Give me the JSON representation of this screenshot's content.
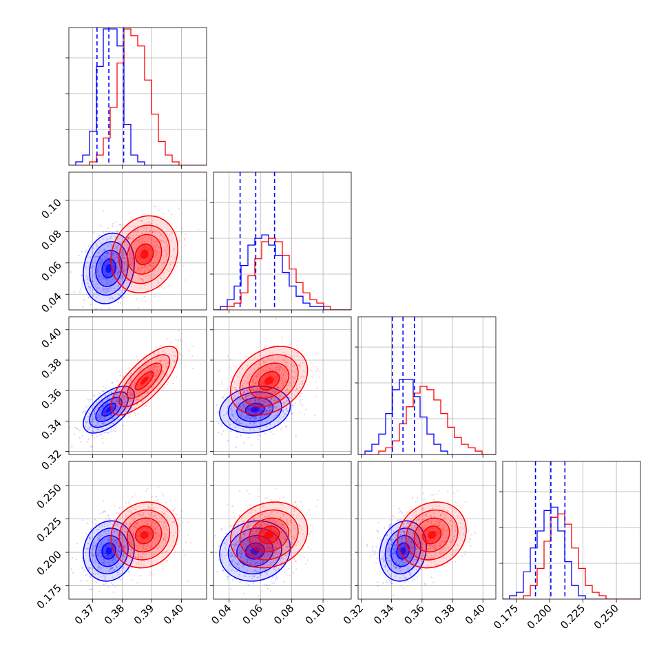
{
  "chart_data": {
    "type": "corner",
    "grid": true,
    "legend": "none",
    "colors": {
      "series_a": "#0000ff",
      "series_b": "#ff0000"
    },
    "series": [
      {
        "color": "#0000ff",
        "mean": [
          0.3755,
          0.0565,
          0.3475,
          0.201
        ],
        "sd": [
          0.0042,
          0.011,
          0.0075,
          0.011
        ],
        "corr": [
          [
            1,
            0.15,
            0.6,
            0.1
          ],
          [
            0.15,
            1,
            0.15,
            0.1
          ],
          [
            0.6,
            0.15,
            1,
            0.15
          ],
          [
            0.1,
            0.1,
            0.15,
            1
          ]
        ],
        "quantiles": [
          [
            0.3715,
            0.3755,
            0.3805
          ],
          [
            0.047,
            0.057,
            0.069
          ],
          [
            0.3405,
            0.3475,
            0.355
          ],
          [
            0.1895,
            0.201,
            0.2115
          ]
        ]
      },
      {
        "color": "#ff0000",
        "mean": [
          0.3875,
          0.0655,
          0.3665,
          0.213
        ],
        "sd": [
          0.0055,
          0.012,
          0.011,
          0.012
        ],
        "corr": [
          [
            1,
            0.15,
            0.75,
            0.1
          ],
          [
            0.15,
            1,
            0.3,
            0.15
          ],
          [
            0.75,
            0.3,
            1,
            0.15
          ],
          [
            0.1,
            0.15,
            0.15,
            1
          ]
        ]
      }
    ],
    "params": [
      {
        "range": [
          0.362,
          0.4085
        ],
        "ticks": [
          "0.37",
          "0.38",
          "0.39",
          "0.40"
        ]
      },
      {
        "range": [
          0.03,
          0.118
        ],
        "ticks": [
          "0.04",
          "0.06",
          "0.08",
          "0.10"
        ]
      },
      {
        "range": [
          0.318,
          0.4085
        ],
        "ticks": [
          "0.32",
          "0.34",
          "0.36",
          "0.38",
          "0.40"
        ]
      },
      {
        "range": [
          0.165,
          0.268
        ],
        "ticks": [
          "0.175",
          "0.200",
          "0.225",
          "0.250"
        ]
      }
    ],
    "hist_levels": [
      {
        "blue": [
          0,
          1,
          3,
          10,
          29,
          40,
          40,
          35,
          12,
          3,
          1,
          0,
          0,
          0,
          0,
          0,
          0,
          0,
          0,
          0
        ],
        "red": [
          0,
          0,
          0,
          1,
          3,
          8,
          17,
          30,
          40,
          38,
          35,
          25,
          15,
          7,
          3,
          1,
          0,
          0,
          0,
          0
        ]
      },
      {
        "blue": [
          0,
          1,
          3,
          7,
          13,
          19,
          21,
          22,
          19,
          16,
          11,
          7,
          4,
          2,
          1,
          1,
          0,
          0,
          0,
          0
        ],
        "red": [
          0,
          0,
          1,
          2,
          5,
          10,
          15,
          20,
          21,
          20,
          16,
          12,
          8,
          5,
          3,
          2,
          1,
          0,
          0,
          0
        ]
      },
      {
        "blue": [
          0,
          1,
          3,
          6,
          12,
          19,
          22,
          22,
          17,
          11,
          6,
          3,
          1,
          0,
          0,
          0,
          0,
          0,
          0,
          0
        ],
        "red": [
          0,
          0,
          0,
          1,
          2,
          4,
          9,
          14,
          18,
          20,
          19,
          16,
          12,
          8,
          5,
          3,
          2,
          1,
          0,
          0
        ]
      },
      {
        "blue": [
          0,
          1,
          2,
          8,
          15,
          20,
          26,
          27,
          20,
          11,
          4,
          1,
          0,
          0,
          0,
          0,
          0,
          0,
          0,
          0
        ],
        "red": [
          0,
          0,
          0,
          1,
          4,
          9,
          17,
          24,
          25,
          22,
          15,
          9,
          4,
          2,
          1,
          0,
          0,
          0,
          0,
          0
        ]
      }
    ]
  }
}
